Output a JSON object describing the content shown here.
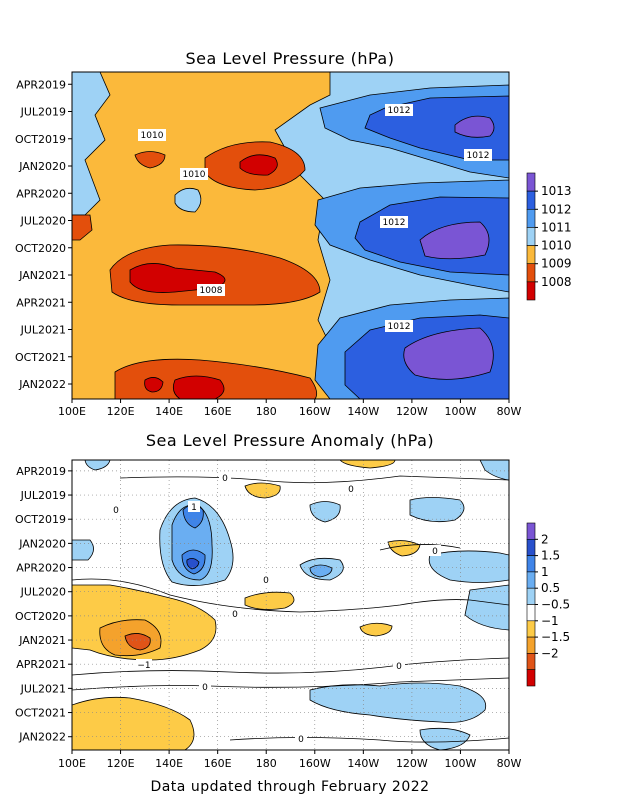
{
  "colors": {
    "c1008": "#d20000",
    "c1009": "#e34f0c",
    "c1010": "#fbb93b",
    "c1011": "#9ed2f5",
    "c1012": "#4f9bf0",
    "c1013": "#2c5fe0",
    "cTop": "#7a55d4",
    "white": "#ffffff",
    "a_m2": "#d20000",
    "a_m15": "#e05418",
    "a_m1": "#f4a22c",
    "a_m05": "#fdcb47",
    "a_p05": "#9ed2f5",
    "a_p1": "#6aaef2",
    "a_p15": "#3f84e8",
    "a_p2": "#2850cc",
    "a_top": "#7a55d4"
  },
  "footer": "Data updated through February 2022",
  "chart_data": [
    {
      "type": "heatmap",
      "title": "Sea Level Pressure (hPa)",
      "x_ticks": [
        "100E",
        "120E",
        "140E",
        "160E",
        "180",
        "160W",
        "140W",
        "120W",
        "100W",
        "80W"
      ],
      "y_ticks": [
        "APR2019",
        "JUL2019",
        "OCT2019",
        "JAN2020",
        "APR2020",
        "JUL2020",
        "OCT2020",
        "JAN2021",
        "APR2021",
        "JUL2021",
        "OCT2021",
        "JAN2022"
      ],
      "colorbar_labels": [
        "1013",
        "1012",
        "1011",
        "1010",
        "1009",
        "1008"
      ],
      "contour_labels": [
        "1012",
        "1012",
        "1010",
        "1010",
        "1012",
        "1008",
        "1012"
      ],
      "x_range": [
        "100E",
        "80W"
      ],
      "y_range": [
        "MAR2019",
        "FEB2022"
      ],
      "grid": false
    },
    {
      "type": "heatmap",
      "title": "Sea Level Pressure Anomaly (hPa)",
      "x_ticks": [
        "100E",
        "120E",
        "140E",
        "160E",
        "180",
        "160W",
        "140W",
        "120W",
        "100W",
        "80W"
      ],
      "y_ticks": [
        "APR2019",
        "JUL2019",
        "OCT2019",
        "JAN2020",
        "APR2020",
        "JUL2020",
        "OCT2020",
        "JAN2021",
        "APR2021",
        "JUL2021",
        "OCT2021",
        "JAN2022"
      ],
      "colorbar_labels": [
        "2",
        "1.5",
        "1",
        "0.5",
        "−0.5",
        "−1",
        "−1.5",
        "−2"
      ],
      "contour_labels": [
        "1",
        "0",
        "0",
        "0",
        "0",
        "0",
        "0",
        "−1",
        "0",
        "0",
        "0"
      ],
      "x_range": [
        "100E",
        "80W"
      ],
      "y_range": [
        "MAR2019",
        "FEB2022"
      ],
      "grid": true
    }
  ]
}
